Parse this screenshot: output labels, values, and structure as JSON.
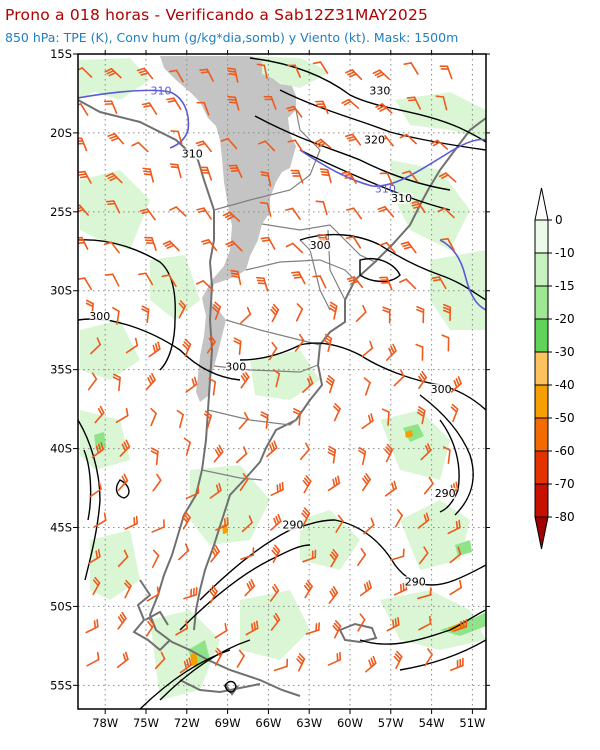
{
  "title": {
    "line1": "Prono a 018 horas - Verificando a Sab12Z31MAY2025",
    "line2": "850 hPa: TPE (K), Conv hum (g/kg*dia,somb) y Viento (kt). Mask: 1500m"
  },
  "axes": {
    "lon_labels": [
      "78W",
      "75W",
      "72W",
      "69W",
      "66W",
      "63W",
      "60W",
      "57W",
      "54W",
      "51W"
    ],
    "lat_labels": [
      "15S",
      "20S",
      "25S",
      "30S",
      "35S",
      "40S",
      "45S",
      "50S",
      "55S"
    ],
    "lon_range": [
      -80,
      -50
    ],
    "lat_range": [
      -15,
      -56.5
    ]
  },
  "contours": {
    "black_labels": [
      {
        "text": "330",
        "lon": -57.8,
        "lat": -17.5
      },
      {
        "text": "320",
        "lon": -58.2,
        "lat": -20.6
      },
      {
        "text": "310",
        "lon": -71.6,
        "lat": -21.5
      },
      {
        "text": "310",
        "lon": -56.2,
        "lat": -24.3
      },
      {
        "text": "300",
        "lon": -62.2,
        "lat": -27.3
      },
      {
        "text": "300",
        "lon": -78.4,
        "lat": -31.8
      },
      {
        "text": "300",
        "lon": -68.4,
        "lat": -35.0
      },
      {
        "text": "300",
        "lon": -53.3,
        "lat": -36.4
      },
      {
        "text": "290",
        "lon": -53.0,
        "lat": -43.0
      },
      {
        "text": "290",
        "lon": -64.2,
        "lat": -45.0
      },
      {
        "text": "290",
        "lon": -55.2,
        "lat": -48.6
      }
    ],
    "blue_labels": [
      {
        "text": "310",
        "lon": -73.9,
        "lat": -17.5
      },
      {
        "text": "310",
        "lon": -57.4,
        "lat": -23.7
      }
    ],
    "black_color": "#000000",
    "blue_color": "#5a5ad8"
  },
  "colorbar": {
    "labels": [
      "0",
      "-10",
      "-15",
      "-20",
      "-30",
      "-40",
      "-50",
      "-60",
      "-70",
      "-80"
    ],
    "colors": [
      "#ecfbe9",
      "#c8f2c0",
      "#9ee893",
      "#5fd35a",
      "#fbc25e",
      "#f5a000",
      "#f26a00",
      "#e43200",
      "#c81000",
      "#a00000"
    ]
  },
  "colors": {
    "mask": "#c4c4c4",
    "coast": "#777777",
    "barb": "#ee5a1c",
    "light_green": "#d7f5d0"
  }
}
